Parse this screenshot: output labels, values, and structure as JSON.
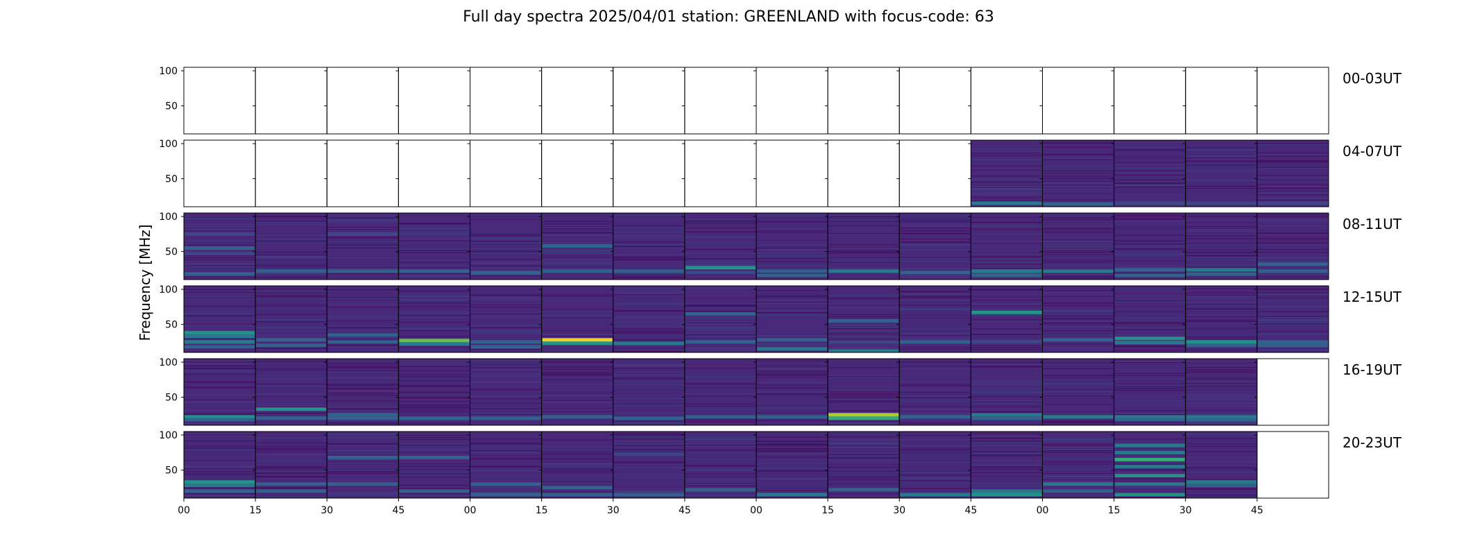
{
  "chart_data": {
    "type": "heatmap",
    "title": "Full day spectra 2025/04/01 station: GREENLAND with focus-code: 63",
    "ylabel": "Frequency [MHz]",
    "xlabel": "",
    "ylim": [
      10,
      105
    ],
    "y_ticks": [
      50,
      100
    ],
    "x_tick_labels": [
      "00",
      "15",
      "30",
      "45",
      "00",
      "15",
      "30",
      "45",
      "00",
      "15",
      "30",
      "45",
      "00",
      "15",
      "30",
      "45"
    ],
    "panels_per_row": 16,
    "colormap": [
      "#440154",
      "#482878",
      "#3e4989",
      "#31688e",
      "#26828e",
      "#1f9e89",
      "#35b779",
      "#6ece58",
      "#b5de2b",
      "#fde725"
    ],
    "rows": [
      {
        "label": "00-03UT",
        "panels": [
          0,
          0,
          0,
          0,
          0,
          0,
          0,
          0,
          0,
          0,
          0,
          0,
          0,
          0,
          0,
          0
        ],
        "bands": [
          [],
          [],
          [],
          [],
          [],
          [],
          [],
          [],
          [],
          [],
          [],
          [],
          [],
          [],
          [],
          []
        ]
      },
      {
        "label": "04-07UT",
        "panels": [
          0,
          0,
          0,
          0,
          0,
          0,
          0,
          0,
          0,
          0,
          0,
          1,
          1,
          1,
          1,
          1
        ],
        "bands": [
          [],
          [],
          [],
          [],
          [],
          [],
          [],
          [],
          [],
          [],
          [],
          [
            [
              15,
              0.4
            ]
          ],
          [
            [
              14,
              0.3
            ]
          ],
          [
            [
              15,
              0.25
            ]
          ],
          [
            [
              15,
              0.25
            ]
          ],
          [
            [
              15,
              0.2
            ]
          ]
        ]
      },
      {
        "label": "08-11UT",
        "panels": [
          1,
          1,
          1,
          1,
          1,
          1,
          1,
          1,
          1,
          1,
          1,
          1,
          1,
          1,
          1,
          1
        ],
        "bands": [
          [
            [
              75,
              0.25
            ],
            [
              55,
              0.3
            ],
            [
              47,
              0.2
            ],
            [
              18,
              0.3
            ]
          ],
          [
            [
              22,
              0.3
            ]
          ],
          [
            [
              75,
              0.2
            ],
            [
              22,
              0.35
            ]
          ],
          [
            [
              22,
              0.3
            ]
          ],
          [
            [
              20,
              0.3
            ]
          ],
          [
            [
              58,
              0.3
            ],
            [
              22,
              0.3
            ]
          ],
          [
            [
              22,
              0.3
            ]
          ],
          [
            [
              27,
              0.5
            ],
            [
              20,
              0.25
            ]
          ],
          [
            [
              22,
              0.35
            ],
            [
              16,
              0.3
            ]
          ],
          [
            [
              22,
              0.45
            ]
          ],
          [
            [
              20,
              0.35
            ]
          ],
          [
            [
              22,
              0.45
            ],
            [
              16,
              0.3
            ]
          ],
          [
            [
              22,
              0.45
            ]
          ],
          [
            [
              24,
              0.35
            ],
            [
              16,
              0.3
            ]
          ],
          [
            [
              24,
              0.45
            ],
            [
              18,
              0.3
            ]
          ],
          [
            [
              32,
              0.35
            ],
            [
              22,
              0.3
            ]
          ]
        ]
      },
      {
        "label": "12-15UT",
        "panels": [
          1,
          1,
          1,
          1,
          1,
          1,
          1,
          1,
          1,
          1,
          1,
          1,
          1,
          1,
          1,
          1
        ],
        "bands": [
          [
            [
              38,
              0.55
            ],
            [
              33,
              0.45
            ],
            [
              25,
              0.45
            ],
            [
              18,
              0.3
            ]
          ],
          [
            [
              28,
              0.35
            ],
            [
              20,
              0.3
            ]
          ],
          [
            [
              35,
              0.3
            ],
            [
              25,
              0.3
            ]
          ],
          [
            [
              27,
              0.8
            ],
            [
              22,
              0.45
            ]
          ],
          [
            [
              25,
              0.35
            ],
            [
              18,
              0.3
            ]
          ],
          [
            [
              28,
              0.95
            ],
            [
              23,
              0.6
            ]
          ],
          [
            [
              23,
              0.4
            ]
          ],
          [
            [
              65,
              0.3
            ],
            [
              25,
              0.3
            ]
          ],
          [
            [
              28,
              0.3
            ],
            [
              15,
              0.45
            ]
          ],
          [
            [
              55,
              0.3
            ],
            [
              25,
              0.25
            ],
            [
              12,
              0.4
            ]
          ],
          [
            [
              25,
              0.3
            ]
          ],
          [
            [
              67,
              0.5
            ],
            [
              25,
              0.25
            ]
          ],
          [
            [
              28,
              0.3
            ]
          ],
          [
            [
              30,
              0.55
            ],
            [
              24,
              0.4
            ]
          ],
          [
            [
              25,
              0.6
            ],
            [
              20,
              0.35
            ]
          ],
          [
            [
              25,
              0.35
            ],
            [
              20,
              0.3
            ]
          ]
        ]
      },
      {
        "label": "16-19UT",
        "panels": [
          1,
          1,
          1,
          1,
          1,
          1,
          1,
          1,
          1,
          1,
          1,
          1,
          1,
          1,
          1,
          0
        ],
        "bands": [
          [
            [
              22,
              0.55
            ],
            [
              18,
              0.3
            ]
          ],
          [
            [
              33,
              0.6
            ],
            [
              20,
              0.3
            ]
          ],
          [
            [
              25,
              0.3
            ],
            [
              20,
              0.3
            ]
          ],
          [
            [
              20,
              0.3
            ]
          ],
          [
            [
              20,
              0.3
            ]
          ],
          [
            [
              22,
              0.35
            ]
          ],
          [
            [
              20,
              0.3
            ]
          ],
          [
            [
              22,
              0.35
            ]
          ],
          [
            [
              22,
              0.3
            ]
          ],
          [
            [
              25,
              0.9
            ],
            [
              20,
              0.7
            ]
          ],
          [
            [
              22,
              0.35
            ]
          ],
          [
            [
              25,
              0.45
            ],
            [
              20,
              0.3
            ]
          ],
          [
            [
              22,
              0.4
            ]
          ],
          [
            [
              22,
              0.4
            ],
            [
              18,
              0.3
            ]
          ],
          [
            [
              22,
              0.4
            ],
            [
              18,
              0.3
            ]
          ],
          []
        ]
      },
      {
        "label": "20-23UT",
        "panels": [
          1,
          1,
          1,
          1,
          1,
          1,
          1,
          1,
          1,
          1,
          1,
          1,
          1,
          1,
          1,
          0
        ],
        "bands": [
          [
            [
              33,
              0.6
            ],
            [
              28,
              0.45
            ],
            [
              20,
              0.3
            ]
          ],
          [
            [
              30,
              0.35
            ],
            [
              20,
              0.3
            ]
          ],
          [
            [
              68,
              0.35
            ],
            [
              30,
              0.3
            ]
          ],
          [
            [
              68,
              0.35
            ],
            [
              20,
              0.3
            ]
          ],
          [
            [
              30,
              0.3
            ],
            [
              15,
              0.35
            ]
          ],
          [
            [
              25,
              0.3
            ],
            [
              15,
              0.3
            ]
          ],
          [
            [
              73,
              0.25
            ],
            [
              15,
              0.3
            ]
          ],
          [
            [
              22,
              0.3
            ]
          ],
          [
            [
              15,
              0.45
            ]
          ],
          [
            [
              22,
              0.3
            ]
          ],
          [
            [
              15,
              0.45
            ]
          ],
          [
            [
              20,
              0.45
            ],
            [
              15,
              0.5
            ]
          ],
          [
            [
              30,
              0.4
            ],
            [
              20,
              0.3
            ]
          ],
          [
            [
              85,
              0.4
            ],
            [
              75,
              0.45
            ],
            [
              65,
              0.65
            ],
            [
              55,
              0.45
            ],
            [
              42,
              0.5
            ],
            [
              30,
              0.4
            ],
            [
              15,
              0.5
            ]
          ],
          [
            [
              33,
              0.45
            ],
            [
              28,
              0.35
            ]
          ],
          []
        ]
      }
    ]
  }
}
